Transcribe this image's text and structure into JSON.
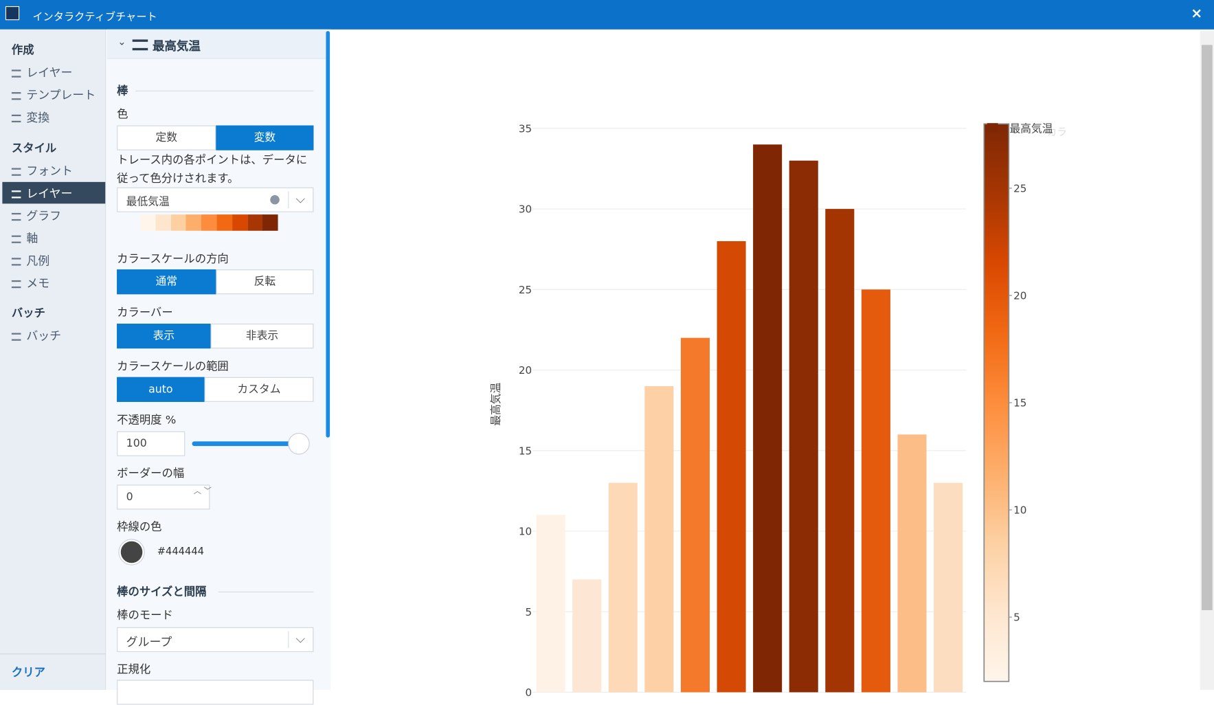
{
  "window": {
    "title": "インタラクティブチャート"
  },
  "sidebar": {
    "sections": [
      {
        "title": "作成",
        "items": [
          "レイヤー",
          "テンプレート",
          "変換"
        ]
      },
      {
        "title": "スタイル",
        "items": [
          "フォント",
          "レイヤー",
          "グラフ",
          "軸",
          "凡例",
          "メモ"
        ]
      },
      {
        "title": "バッチ",
        "items": [
          "バッチ"
        ]
      }
    ],
    "clear": "クリア"
  },
  "panel": {
    "header": "最高気温",
    "section_bar": "棒",
    "color_label": "色",
    "color_mode": [
      "定数",
      "変数"
    ],
    "color_desc": "トレース内の各ポイントは、データに従って色分けされます。",
    "color_field": "最低気温",
    "scale_dir_label": "カラースケールの方向",
    "scale_dir": [
      "通常",
      "反転"
    ],
    "colorbar_label": "カラーバー",
    "colorbar": [
      "表示",
      "非表示"
    ],
    "range_label": "カラースケールの範囲",
    "range": [
      "auto",
      "カスタム"
    ],
    "opacity_label": "不透明度 %",
    "opacity": 100,
    "border_width_label": "ボーダーの幅",
    "border_width": 0,
    "border_color_label": "枠線の色",
    "border_color": "#444444",
    "section_size": "棒のサイズと間隔",
    "bar_mode_label": "棒のモード",
    "bar_mode": "グループ",
    "normalize_label": "正規化"
  },
  "chart_data": {
    "type": "bar",
    "y_label": "最高気温",
    "legend": "最高気温",
    "colorbar_title": "カラ",
    "values": [
      11,
      7,
      13,
      19,
      22,
      28,
      34,
      33,
      30,
      25,
      16,
      13
    ],
    "colors": [
      "#fef1e5",
      "#fde6d3",
      "#fdd9b8",
      "#fdd1a5",
      "#f5792a",
      "#d44a05",
      "#7f2704",
      "#8c2c04",
      "#a33503",
      "#e55b0e",
      "#fdbd87",
      "#fdddc0"
    ],
    "ylim": [
      0,
      36
    ],
    "yticks": [
      0,
      5,
      10,
      15,
      20,
      25,
      30,
      35
    ],
    "grid": true,
    "clim": [
      2,
      28
    ],
    "cticks": [
      5,
      10,
      15,
      20,
      25
    ],
    "colorscale": [
      "#fff5eb",
      "#fee6ce",
      "#fdd0a2",
      "#fdae6b",
      "#fd8d3c",
      "#f16913",
      "#d94801",
      "#a63603",
      "#7f2704"
    ]
  }
}
